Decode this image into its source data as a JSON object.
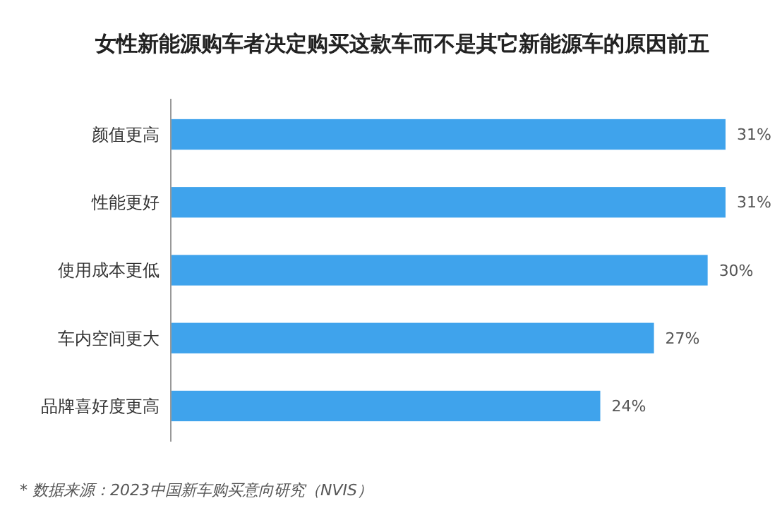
{
  "chart_data": {
    "type": "bar",
    "orientation": "horizontal",
    "title": "女性新能源购车者决定购买这款车而不是其它新能源车的原因前五",
    "categories": [
      "颜值更高",
      "性能更好",
      "使用成本更低",
      "车内空间更大",
      "品牌喜好度更高"
    ],
    "values": [
      31,
      31,
      30,
      27,
      24
    ],
    "value_labels": [
      "31%",
      "31%",
      "30%",
      "27%",
      "24%"
    ],
    "color": "#3fa3ec",
    "xlim": [
      0,
      31
    ],
    "annotations": [
      "* 数据来源：2023中国新车购买意向研究（NVIS）"
    ]
  }
}
